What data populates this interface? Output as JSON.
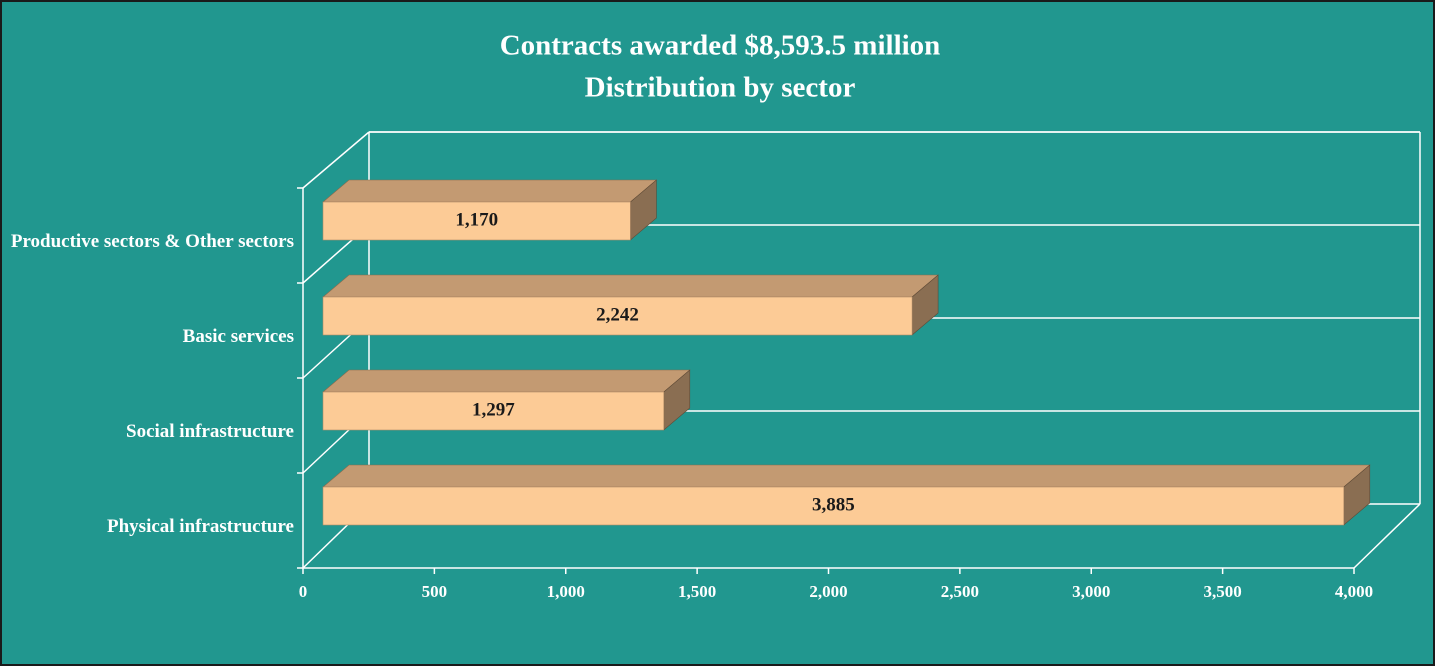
{
  "chart_data": {
    "type": "bar",
    "title": "Contracts awarded $8,593.5 million",
    "subtitle": "Distribution by sector",
    "categories": [
      "Productive sectors & Other sectors",
      "Basic services",
      "Social infrastructure",
      "Physical infrastructure"
    ],
    "values": [
      1170,
      2242,
      1297,
      3885
    ],
    "value_labels": [
      "1,170",
      "2,242",
      "1,297",
      "3,885"
    ],
    "color": "#fccb96",
    "xlim": [
      0,
      4000
    ],
    "xticks": [
      0,
      500,
      {
        "value": 1000,
        "label": "1,000"
      },
      {
        "value": 1500,
        "label": "1,500"
      },
      {
        "value": 2000,
        "label": "2,000"
      },
      {
        "value": 2500,
        "label": "2,500"
      },
      {
        "value": 3000,
        "label": "3,000"
      },
      {
        "value": 3500,
        "label": "3,500"
      },
      {
        "value": 4000,
        "label": "4,000"
      }
    ]
  }
}
